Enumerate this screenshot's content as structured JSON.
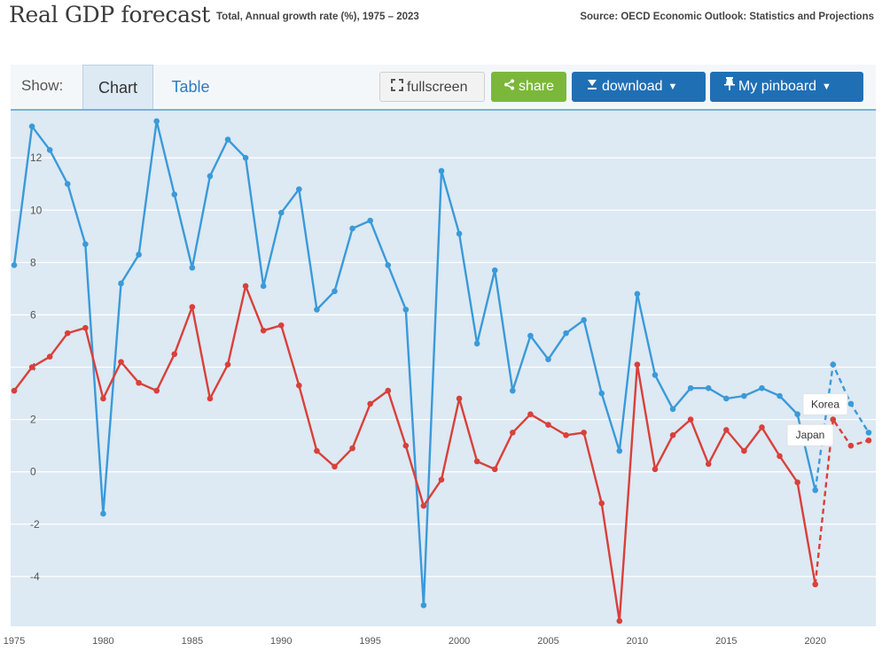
{
  "header": {
    "title": "Real GDP forecast",
    "subtitle": "Total, Annual growth rate (%), 1975 – 2023",
    "source": "Source: OECD Economic Outlook: Statistics and Projections"
  },
  "toolbar": {
    "show_label": "Show:",
    "tabs": [
      {
        "label": "Chart",
        "active": true
      },
      {
        "label": "Table",
        "active": false
      }
    ],
    "fullscreen_label": "fullscreen",
    "share_label": "share",
    "download_label": "download",
    "pinboard_label": "My pinboard"
  },
  "colors": {
    "korea": "#3a9ad9",
    "japan": "#d9403a",
    "plot_bg": "#dde9f3",
    "accent": "#1f6fb5",
    "share": "#7bb83a"
  },
  "chart_data": {
    "type": "line",
    "title": "",
    "xlabel": "",
    "ylabel": "",
    "x": [
      1975,
      1976,
      1977,
      1978,
      1979,
      1980,
      1981,
      1982,
      1983,
      1984,
      1985,
      1986,
      1987,
      1988,
      1989,
      1990,
      1991,
      1992,
      1993,
      1994,
      1995,
      1996,
      1997,
      1998,
      1999,
      2000,
      2001,
      2002,
      2003,
      2004,
      2005,
      2006,
      2007,
      2008,
      2009,
      2010,
      2011,
      2012,
      2013,
      2014,
      2015,
      2016,
      2017,
      2018,
      2019,
      2020,
      2021,
      2022,
      2023
    ],
    "x_ticks": [
      1975,
      1980,
      1985,
      1990,
      1995,
      2000,
      2005,
      2010,
      2015,
      2020
    ],
    "y_ticks": [
      -4,
      -2,
      0,
      2,
      4,
      6,
      8,
      10,
      12
    ],
    "xlim": [
      1974.8,
      2023.4
    ],
    "ylim": [
      -5.9,
      13.8
    ],
    "grid": "horizontal",
    "series": [
      {
        "name": "Korea",
        "color_key": "korea",
        "dashed_from": 2021,
        "values": [
          7.9,
          13.2,
          12.3,
          11.0,
          8.7,
          -1.6,
          7.2,
          8.3,
          13.4,
          10.6,
          7.8,
          11.3,
          12.7,
          12.0,
          7.1,
          9.9,
          10.8,
          6.2,
          6.9,
          9.3,
          9.6,
          7.9,
          6.2,
          -5.1,
          11.5,
          9.1,
          4.9,
          7.7,
          3.1,
          5.2,
          4.3,
          5.3,
          5.8,
          3.0,
          0.8,
          6.8,
          3.7,
          2.4,
          3.2,
          3.2,
          2.8,
          2.9,
          3.2,
          2.9,
          2.2,
          -0.7,
          4.1,
          2.6,
          1.5
        ]
      },
      {
        "name": "Japan",
        "color_key": "japan",
        "dashed_from": 2021,
        "values": [
          3.1,
          4.0,
          4.4,
          5.3,
          5.5,
          2.8,
          4.2,
          3.4,
          3.1,
          4.5,
          6.3,
          2.8,
          4.1,
          7.1,
          5.4,
          5.6,
          3.3,
          0.8,
          0.2,
          0.9,
          2.6,
          3.1,
          1.0,
          -1.3,
          -0.3,
          2.8,
          0.4,
          0.1,
          1.5,
          2.2,
          1.8,
          1.4,
          1.5,
          -1.2,
          -5.7,
          4.1,
          0.1,
          1.4,
          2.0,
          0.3,
          1.6,
          0.8,
          1.7,
          0.6,
          -0.4,
          -4.3,
          2.0,
          1.0,
          1.2
        ]
      }
    ]
  }
}
